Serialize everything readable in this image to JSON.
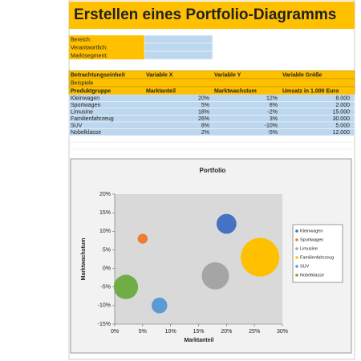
{
  "header": {
    "title": "Erstellen eines Portfolio-Diagramms"
  },
  "form": {
    "fields": [
      "Bereich:",
      "Verantwortlich:",
      "Marktsegment:"
    ]
  },
  "table": {
    "header_rows": [
      [
        "Betrachtungseinheit",
        "Variable X",
        "Variable Y",
        "Variable Größe"
      ],
      [
        "Beispiele",
        "",
        "",
        ""
      ],
      [
        "Produktgruppe",
        "Marktanteil",
        "Marktwachstum",
        "Umsatz in 1.000 Euro"
      ]
    ],
    "rows": [
      [
        "Kleinwagen",
        "20%",
        "12%",
        "8.000"
      ],
      [
        "Sportwagen",
        "5%",
        "8%",
        "2.000"
      ],
      [
        "Limusine",
        "18%",
        "-2%",
        "15.000"
      ],
      [
        "Familienfahrzeug",
        "26%",
        "3%",
        "30.000"
      ],
      [
        "SUV",
        "8%",
        "-10%",
        "5.000"
      ],
      [
        "Nobelklasse",
        "2%",
        "-5%",
        "12.000"
      ]
    ]
  },
  "chart_data": {
    "type": "bubble",
    "title": "Portfolio",
    "x_label": "Marktanteil",
    "y_label": "Marktwachstum",
    "xlim": [
      0,
      30
    ],
    "xticks": [
      {
        "value": 0,
        "label": "0%"
      },
      {
        "value": 5,
        "label": "5%"
      },
      {
        "value": 10,
        "label": "10%"
      },
      {
        "value": 15,
        "label": "15%"
      },
      {
        "value": 20,
        "label": "20%"
      },
      {
        "value": 25,
        "label": "25%"
      },
      {
        "value": 30,
        "label": "30%"
      }
    ],
    "ylim": [
      -15,
      20
    ],
    "yticks": [
      {
        "value": -15,
        "label": "-15%"
      },
      {
        "value": -10,
        "label": "-10%"
      },
      {
        "value": -5,
        "label": "-5%"
      },
      {
        "value": 0,
        "label": "0%"
      },
      {
        "value": 5,
        "label": "5%"
      },
      {
        "value": 10,
        "label": "10%"
      },
      {
        "value": 15,
        "label": "15%"
      },
      {
        "value": 20,
        "label": "20%"
      }
    ],
    "legend": "right",
    "series": [
      {
        "name": "Kleinwagen",
        "color": "#4472c4",
        "x": [
          20
        ],
        "values": [
          12
        ],
        "sizes": [
          8000
        ]
      },
      {
        "name": "Sportwagen",
        "color": "#ed7d31",
        "x": [
          5
        ],
        "values": [
          8
        ],
        "sizes": [
          2000
        ]
      },
      {
        "name": "Limusine",
        "color": "#a5a5a5",
        "x": [
          18
        ],
        "values": [
          -2
        ],
        "sizes": [
          15000
        ]
      },
      {
        "name": "Familienfahrzeug",
        "color": "#ffc000",
        "x": [
          26
        ],
        "values": [
          3
        ],
        "sizes": [
          30000
        ]
      },
      {
        "name": "SUV",
        "color": "#5b9bd5",
        "x": [
          8
        ],
        "values": [
          -10
        ],
        "sizes": [
          5000
        ]
      },
      {
        "name": "Nobelklasse",
        "color": "#70ad47",
        "x": [
          2
        ],
        "values": [
          -5
        ],
        "sizes": [
          12000
        ]
      }
    ]
  }
}
